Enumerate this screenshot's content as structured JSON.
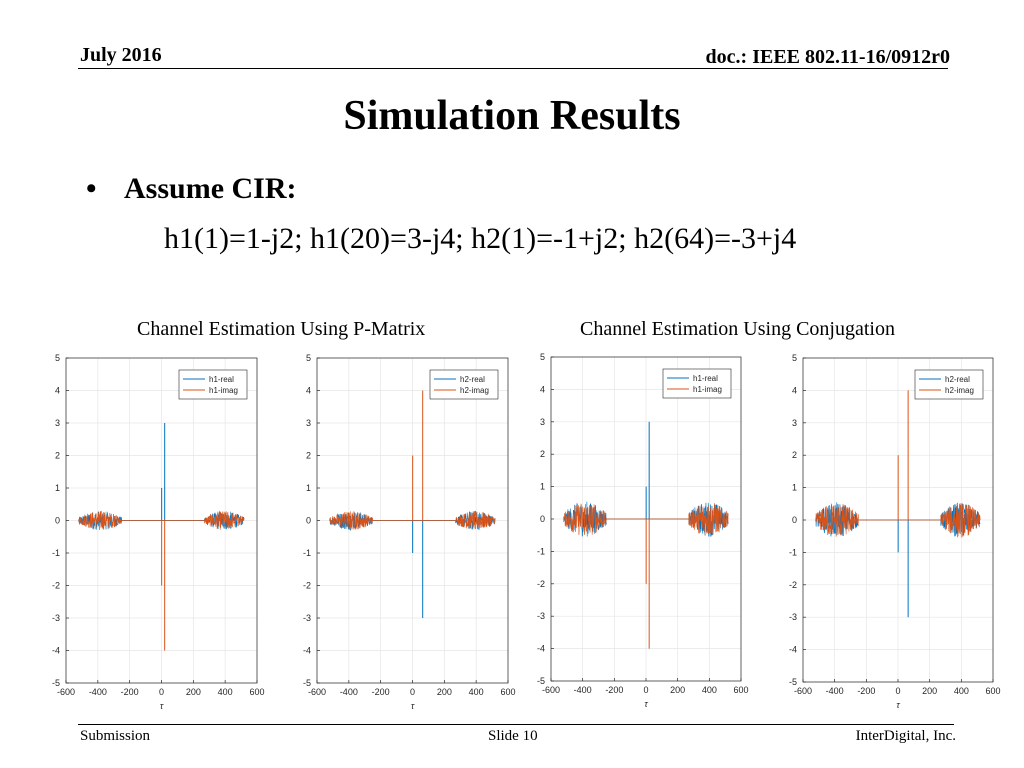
{
  "header": {
    "date": "July 2016",
    "doc": "doc.: IEEE 802.11-16/0912r0"
  },
  "title": "Simulation Results",
  "bullet": "Assume CIR:",
  "equation": "h1(1)=1-j2; h1(20)=3-j4; h2(1)=-1+j2; h2(64)=-3+j4",
  "captions": {
    "pmatrix": "Channel Estimation Using P-Matrix",
    "conjugation": "Channel Estimation Using Conjugation"
  },
  "footer": {
    "left": "Submission",
    "center": "Slide 10",
    "right": "InterDigital, Inc."
  },
  "colors": {
    "real": "#0072bd",
    "imag": "#d95319"
  },
  "chart_data": [
    {
      "type": "line",
      "xlabel": "τ",
      "xlim": [
        -600,
        600
      ],
      "ylim": [
        -5,
        5
      ],
      "xticks": [
        -600,
        -400,
        -200,
        0,
        200,
        400,
        600
      ],
      "yticks": [
        -5,
        -4,
        -3,
        -2,
        -1,
        0,
        1,
        2,
        3,
        4,
        5
      ],
      "grid": true,
      "legend": "top-right",
      "series": [
        {
          "name": "h1-real",
          "spikes": [
            [
              1,
              1
            ],
            [
              20,
              3
            ]
          ],
          "noise": {
            "ranges": [
              [
                -520,
                -250
              ],
              [
                270,
                520
              ]
            ],
            "amplitude": 0.3
          }
        },
        {
          "name": "h1-imag",
          "spikes": [
            [
              1,
              -2
            ],
            [
              20,
              -4
            ]
          ],
          "noise": {
            "ranges": [
              [
                -520,
                -250
              ],
              [
                270,
                520
              ]
            ],
            "amplitude": 0.3
          }
        }
      ]
    },
    {
      "type": "line",
      "xlabel": "τ",
      "xlim": [
        -600,
        600
      ],
      "ylim": [
        -5,
        5
      ],
      "xticks": [
        -600,
        -400,
        -200,
        0,
        200,
        400,
        600
      ],
      "yticks": [
        -5,
        -4,
        -3,
        -2,
        -1,
        0,
        1,
        2,
        3,
        4,
        5
      ],
      "grid": true,
      "legend": "top-right",
      "series": [
        {
          "name": "h2-real",
          "spikes": [
            [
              1,
              -1
            ],
            [
              64,
              -3
            ]
          ],
          "noise": {
            "ranges": [
              [
                -520,
                -250
              ],
              [
                270,
                520
              ]
            ],
            "amplitude": 0.3
          }
        },
        {
          "name": "h2-imag",
          "spikes": [
            [
              1,
              2
            ],
            [
              64,
              4
            ]
          ],
          "noise": {
            "ranges": [
              [
                -520,
                -250
              ],
              [
                270,
                520
              ]
            ],
            "amplitude": 0.3
          }
        }
      ]
    },
    {
      "type": "line",
      "xlabel": "τ",
      "xlim": [
        -600,
        600
      ],
      "ylim": [
        -5,
        5
      ],
      "xticks": [
        -600,
        -400,
        -200,
        0,
        200,
        400,
        600
      ],
      "yticks": [
        -5,
        -4,
        -3,
        -2,
        -1,
        0,
        1,
        2,
        3,
        4,
        5
      ],
      "grid": true,
      "legend": "top-right",
      "series": [
        {
          "name": "h1-real",
          "spikes": [
            [
              1,
              1
            ],
            [
              20,
              3
            ]
          ],
          "noise": {
            "ranges": [
              [
                -520,
                -250
              ],
              [
                270,
                520
              ]
            ],
            "amplitude": 0.55
          }
        },
        {
          "name": "h1-imag",
          "spikes": [
            [
              1,
              -2
            ],
            [
              20,
              -4
            ]
          ],
          "noise": {
            "ranges": [
              [
                -520,
                -250
              ],
              [
                270,
                520
              ]
            ],
            "amplitude": 0.55
          }
        }
      ]
    },
    {
      "type": "line",
      "xlabel": "τ",
      "xlim": [
        -600,
        600
      ],
      "ylim": [
        -5,
        5
      ],
      "xticks": [
        -600,
        -400,
        -200,
        0,
        200,
        400,
        600
      ],
      "yticks": [
        -5,
        -4,
        -3,
        -2,
        -1,
        0,
        1,
        2,
        3,
        4,
        5
      ],
      "grid": true,
      "legend": "top-right",
      "series": [
        {
          "name": "h2-real",
          "spikes": [
            [
              1,
              -1
            ],
            [
              64,
              -3
            ]
          ],
          "noise": {
            "ranges": [
              [
                -520,
                -250
              ],
              [
                270,
                520
              ]
            ],
            "amplitude": 0.55
          }
        },
        {
          "name": "h2-imag",
          "spikes": [
            [
              1,
              2
            ],
            [
              64,
              4
            ]
          ],
          "noise": {
            "ranges": [
              [
                -520,
                -250
              ],
              [
                270,
                520
              ]
            ],
            "amplitude": 0.55
          }
        }
      ]
    }
  ]
}
